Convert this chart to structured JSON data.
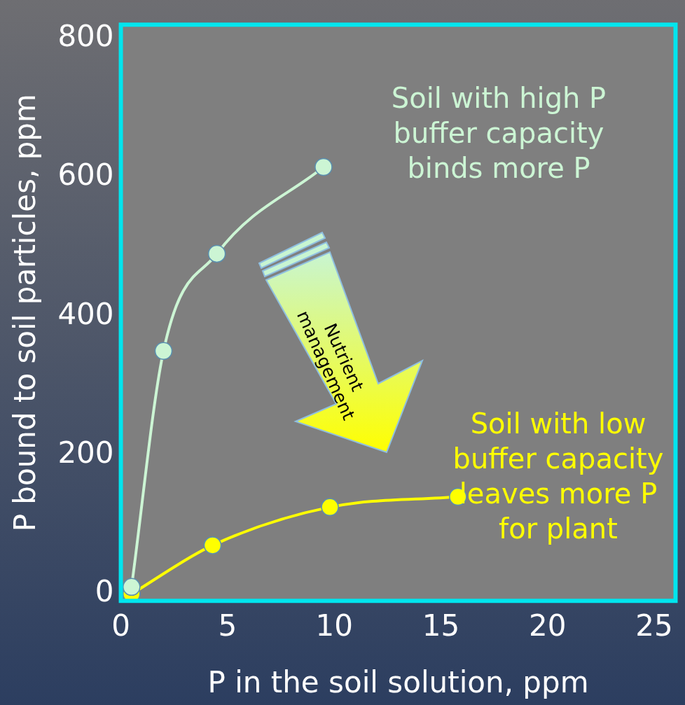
{
  "chart_data": {
    "type": "line",
    "xlabel": "P in the soil solution, ppm",
    "ylabel": "P bound to soil particles, ppm",
    "xlim": [
      0,
      26
    ],
    "xticks": [
      0,
      5,
      10,
      15,
      20,
      25
    ],
    "ylim": [
      -10,
      820
    ],
    "yticks": [
      0,
      200,
      400,
      600,
      800
    ],
    "grid": false,
    "legend": false,
    "marker": "circle",
    "series": [
      {
        "color": "#ccf5d4",
        "x": [
          0.5,
          2,
          4.5,
          9.5
        ],
        "values": [
          10,
          350,
          490,
          615
        ]
      },
      {
        "color": "#ffff00",
        "x": [
          0.5,
          4.3,
          9.8,
          15.8
        ],
        "values": [
          0,
          70,
          125,
          140
        ]
      }
    ],
    "annotations": [
      "Soil with high P buffer capacity binds more P",
      "Soil with low buffer capacity leaves more P for plant",
      "Nutrient management"
    ]
  }
}
